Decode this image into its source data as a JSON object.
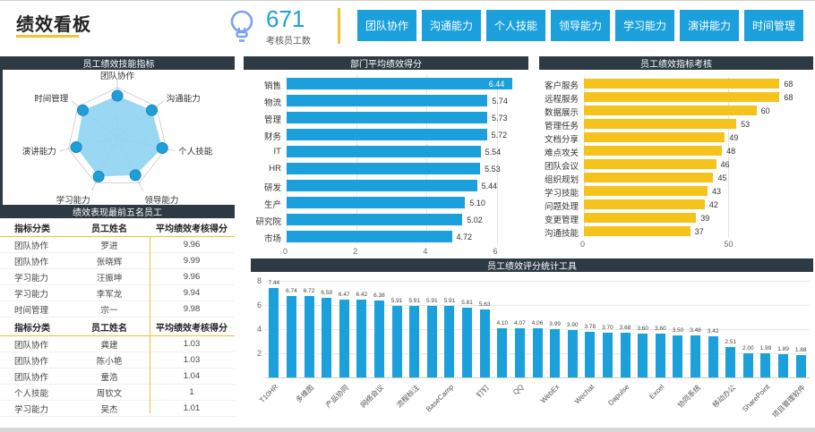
{
  "header": {
    "title": "绩效看板",
    "kpi_value": "671",
    "kpi_label": "考核员工数",
    "filter_buttons": [
      "团队协作",
      "沟通能力",
      "个人技能",
      "领导能力",
      "学习能力",
      "演讲能力",
      "时间管理"
    ]
  },
  "panels": {
    "radar_title": "员工绩效技能指标",
    "top_table_title": "绩效表现最前五名员工",
    "dept_title": "部门平均绩效得分",
    "indicator_title": "员工绩效指标考核",
    "tools_title": "员工绩效评分统计工具"
  },
  "tables": {
    "columns": [
      "指标分类",
      "员工姓名",
      "平均绩效考核得分"
    ],
    "top5": [
      [
        "团队协作",
        "罗进",
        "9.96"
      ],
      [
        "团队协作",
        "张晓辉",
        "9.99"
      ],
      [
        "学习能力",
        "汪振坤",
        "9.96"
      ],
      [
        "学习能力",
        "李军龙",
        "9.94"
      ],
      [
        "时间管理",
        "宗一",
        "9.98"
      ]
    ],
    "bottom5": [
      [
        "团队协作",
        "龚建",
        "1.03"
      ],
      [
        "团队协作",
        "陈小艳",
        "1.03"
      ],
      [
        "团队协作",
        "童浩",
        "1.04"
      ],
      [
        "个人技能",
        "周钦文",
        "1"
      ],
      [
        "学习能力",
        "吴杰",
        "1.01"
      ]
    ]
  },
  "colors": {
    "blue": "#1BA0DC",
    "yellow": "#F5C31C",
    "header_dark": "#2D3A43",
    "accent_yellow": "#F0C332",
    "kpi_blue": "#1F9FD9",
    "bulb_blue": "#7D9FF4",
    "radar_fill": "#8FD3F2",
    "radar_dot": "#1E9FDA"
  },
  "chart_data": [
    {
      "id": "skill_radar",
      "type": "radar",
      "title": "员工绩效技能指标",
      "indicators": [
        "团队协作",
        "沟通能力",
        "个人技能",
        "领导能力",
        "学习能力",
        "演讲能力",
        "时间管理"
      ],
      "values": [
        0.84,
        0.88,
        0.92,
        0.83,
        0.86,
        0.84,
        0.88
      ],
      "max": 1,
      "grid_levels": 5
    },
    {
      "id": "dept_avg",
      "type": "bar",
      "orientation": "horizontal",
      "title": "部门平均绩效得分",
      "categories": [
        "销售",
        "物流",
        "管理",
        "财务",
        "IT",
        "HR",
        "研发",
        "生产",
        "研究院",
        "市场"
      ],
      "values": [
        6.44,
        5.74,
        5.73,
        5.72,
        5.54,
        5.53,
        5.44,
        5.1,
        5.02,
        4.72
      ],
      "value_labels": [
        "6.44",
        "5.74",
        "5.73",
        "5.72",
        "5.54",
        "5.53",
        "5.44",
        "5.10",
        "5.02",
        "4.72"
      ],
      "xticks": [
        "0",
        "2",
        "4",
        "6"
      ],
      "xtick_values": [
        0,
        2,
        4,
        6
      ],
      "xlim": [
        0,
        6.6
      ],
      "first_label_inside": true
    },
    {
      "id": "indicator_score",
      "type": "bar",
      "orientation": "horizontal",
      "title": "员工绩效指标考核",
      "categories": [
        "客户服务",
        "远程服务",
        "数据展示",
        "管理任务",
        "文档分享",
        "难点攻关",
        "团队会议",
        "组织规划",
        "学习技能",
        "问题处理",
        "变更管理",
        "沟通技能"
      ],
      "values": [
        68,
        68,
        60,
        53,
        49,
        48,
        46,
        45,
        43,
        42,
        39,
        37
      ],
      "value_labels": [
        "68",
        "68",
        "60",
        "53",
        "49",
        "48",
        "46",
        "45",
        "43",
        "42",
        "39",
        "37"
      ],
      "xticks": [
        "0",
        "50"
      ],
      "xtick_values": [
        0,
        50
      ],
      "xlim": [
        0,
        76
      ],
      "first_label_inside": false
    },
    {
      "id": "tools_score",
      "type": "bar",
      "orientation": "vertical",
      "title": "员工绩效评分统计工具",
      "categories": [
        "T10HR",
        "",
        "多维图",
        "",
        "产品协同",
        "",
        "网络会议",
        "",
        "流程标注",
        "",
        "BaseCamp",
        "",
        "钉钉",
        "",
        "QQ",
        "",
        "WebEx",
        "",
        "Wechat",
        "",
        "Dapulse",
        "",
        "Excel",
        "",
        "协同系统",
        "",
        "移动办公",
        "",
        "SharePoint",
        "",
        "项目管理软件"
      ],
      "values": [
        7.44,
        6.74,
        6.72,
        6.58,
        6.47,
        6.42,
        6.38,
        5.91,
        5.91,
        5.91,
        5.91,
        5.81,
        5.63,
        4.1,
        4.07,
        4.06,
        3.99,
        3.9,
        3.78,
        3.7,
        3.68,
        3.6,
        3.6,
        3.5,
        3.48,
        3.42,
        2.51,
        2.0,
        1.99,
        1.89,
        1.88
      ],
      "value_labels": [
        "7.44",
        "6.74",
        "6.72",
        "6.58",
        "6.47",
        "6.42",
        "6.38",
        "5.91",
        "5.91",
        "5.91",
        "5.91",
        "5.81",
        "5.63",
        "4.10",
        "4.07",
        "4.06",
        "3.99",
        "3.90",
        "3.78",
        "3.70",
        "3.68",
        "3.60",
        "3.60",
        "3.50",
        "3.48",
        "3.42",
        "2.51",
        "2.00",
        "1.99",
        "1.89",
        "1.88"
      ],
      "yticks": [
        "8",
        "6",
        "4",
        "2"
      ],
      "ytick_values": [
        8,
        6,
        4,
        2
      ],
      "ylim": [
        0,
        8.3
      ]
    }
  ]
}
